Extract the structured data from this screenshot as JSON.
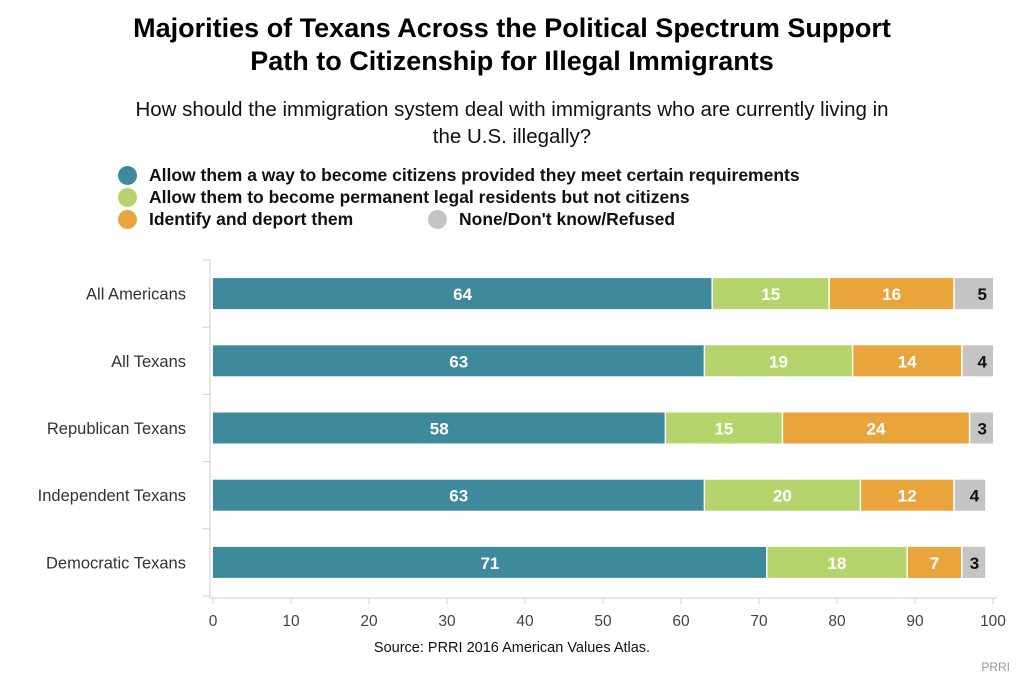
{
  "title_line1": "Majorities of Texans Across the Political Spectrum Support",
  "title_line2": "Path to Citizenship for Illegal Immigrants",
  "subtitle_line1": "How should the immigration system deal with immigrants who are currently living in",
  "subtitle_line2": "the U.S. illegally?",
  "legend": [
    {
      "label": "Allow them a way to become citizens provided they meet certain requirements",
      "color": "#3e8a9c"
    },
    {
      "label": "Allow them to become permanent legal residents but not citizens",
      "color": "#b6d46c"
    },
    {
      "label": "Identify and deport them",
      "color": "#e9a43c"
    },
    {
      "label": "None/Don't know/Refused",
      "color": "#c4c4c4"
    }
  ],
  "source": "Source: PRRI 2016 American Values Atlas.",
  "brand": "PRRI",
  "chart_data": {
    "type": "bar",
    "orientation": "horizontal",
    "stacked": true,
    "categories": [
      "All Americans",
      "All Texans",
      "Republican Texans",
      "Independent Texans",
      "Democratic Texans"
    ],
    "series": [
      {
        "name": "Allow them a way to become citizens provided they meet certain requirements",
        "color": "#3e8a9c",
        "label_color": "#ffffff",
        "values": [
          64,
          63,
          58,
          63,
          71
        ]
      },
      {
        "name": "Allow them to become permanent legal residents but not citizens",
        "color": "#b6d46c",
        "label_color": "#ffffff",
        "values": [
          15,
          19,
          15,
          20,
          18
        ]
      },
      {
        "name": "Identify and deport them",
        "color": "#e9a43c",
        "label_color": "#ffffff",
        "values": [
          16,
          14,
          24,
          12,
          7
        ]
      },
      {
        "name": "None/Don't know/Refused",
        "color": "#c4c4c4",
        "label_color": "#111111",
        "values": [
          5,
          4,
          3,
          4,
          3
        ]
      }
    ],
    "xlim": [
      0,
      100
    ],
    "xticks": [
      0,
      10,
      20,
      30,
      40,
      50,
      60,
      70,
      80,
      90,
      100
    ],
    "grid": false,
    "legend_position": "top"
  }
}
